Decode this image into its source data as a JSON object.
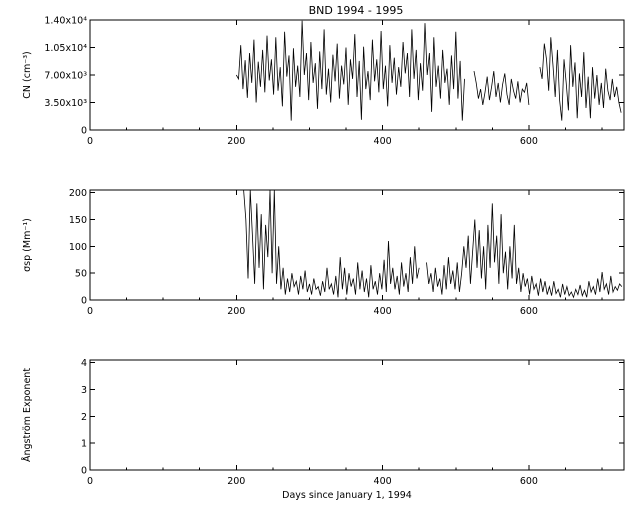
{
  "title": "BND 1994 - 1995",
  "chart_data": [
    {
      "type": "line",
      "ylabel": "CN (cm⁻³)",
      "xlim": [
        0,
        730
      ],
      "ylim": [
        0,
        14000
      ],
      "xticks": [
        0,
        200,
        400,
        600
      ],
      "xtick_labels": [
        "0",
        "200",
        "400",
        "600"
      ],
      "yticks": [
        0,
        3500,
        7000,
        10500,
        14000
      ],
      "ytick_labels": [
        "0",
        "3.50x10³",
        "7.00x10³",
        "1.05x10⁴",
        "1.40x10⁴"
      ],
      "segments": [
        {
          "x": [
            200,
            203,
            206,
            209,
            212,
            215,
            218,
            221,
            224,
            227,
            230,
            233,
            236,
            239,
            242,
            245,
            248,
            251,
            254,
            257,
            260,
            263,
            266,
            269,
            272,
            275,
            278,
            281,
            284,
            287,
            290,
            293,
            296,
            299,
            302,
            305,
            308,
            311,
            314,
            317,
            320,
            323,
            326,
            329,
            332,
            335,
            338,
            341,
            344,
            347,
            350,
            353,
            356,
            359,
            362,
            365,
            368,
            371,
            374,
            377,
            380,
            383,
            386,
            389,
            392,
            395,
            398,
            401,
            404,
            407,
            410,
            413,
            416,
            419,
            422,
            425,
            428,
            431,
            434,
            437,
            440,
            443,
            446,
            449,
            452,
            455,
            458,
            461,
            464,
            467,
            470,
            473,
            476,
            479,
            482,
            485,
            488,
            491,
            494,
            497,
            500,
            503,
            506,
            509,
            512
          ],
          "y": [
            7000,
            6500,
            10800,
            5200,
            8900,
            4100,
            9800,
            6000,
            11500,
            3500,
            8700,
            5500,
            10200,
            4800,
            12000,
            6300,
            9000,
            4500,
            11800,
            5000,
            8000,
            3000,
            12500,
            6800,
            9500,
            1200,
            10400,
            5500,
            8200,
            4200,
            13900,
            7000,
            9800,
            3800,
            11200,
            6000,
            8500,
            2700,
            10000,
            5200,
            12800,
            4500,
            7800,
            3500,
            9600,
            6200,
            11000,
            4000,
            8200,
            5800,
            10500,
            3200,
            9000,
            6500,
            12200,
            4200,
            8800,
            1300,
            10600,
            5200,
            7500,
            3800,
            11500,
            6200,
            9000,
            4800,
            12600,
            5200,
            8200,
            3000,
            10800,
            6000,
            9200,
            4500,
            8000,
            5500,
            11200,
            7200,
            9800,
            4200,
            12800,
            6500,
            10200,
            3800,
            8500,
            5000,
            13600,
            7000,
            9800,
            2300,
            11800,
            5500,
            8200,
            4000,
            10200,
            6000,
            7800,
            3200,
            9500,
            5200,
            12500,
            4000,
            8800,
            1200,
            6500
          ]
        },
        {
          "x": [
            525,
            528,
            531,
            534,
            537,
            540,
            543,
            546,
            549,
            552,
            555,
            558,
            561,
            564,
            567,
            570,
            573,
            576,
            579,
            582,
            585,
            588,
            591,
            594,
            597,
            600
          ],
          "y": [
            7500,
            6000,
            4000,
            5200,
            3200,
            4800,
            6800,
            3800,
            5500,
            7500,
            4200,
            6000,
            3500,
            5800,
            7200,
            4500,
            3200,
            6500,
            5000,
            4000,
            6200,
            3500,
            5200,
            4800,
            6000,
            3200
          ]
        },
        {
          "x": [
            615,
            618,
            621,
            624,
            627,
            630,
            633,
            636,
            639,
            642,
            645,
            648,
            651,
            654,
            657,
            660,
            663,
            666,
            669,
            672,
            675,
            678,
            681,
            684,
            687,
            690,
            693,
            696,
            699,
            702,
            705,
            708,
            711,
            714,
            717,
            720,
            723,
            726
          ],
          "y": [
            8000,
            6500,
            11000,
            9000,
            5000,
            11800,
            8200,
            4200,
            10200,
            3800,
            1200,
            9000,
            6000,
            2500,
            10800,
            5500,
            8600,
            1500,
            7200,
            4200,
            9900,
            2800,
            6800,
            1500,
            8000,
            4000,
            7000,
            3200,
            6000,
            2800,
            7800,
            5000,
            3800,
            6500,
            4200,
            5500,
            3500,
            2200
          ]
        }
      ]
    },
    {
      "type": "line",
      "ylabel": "σsp (Mm⁻¹)",
      "xlim": [
        0,
        730
      ],
      "ylim": [
        0,
        205
      ],
      "xticks": [
        0,
        200,
        400,
        600
      ],
      "xtick_labels": [
        "0",
        "200",
        "400",
        "600"
      ],
      "yticks": [
        0,
        50,
        100,
        150,
        200
      ],
      "ytick_labels": [
        "0",
        "50",
        "100",
        "150",
        "200"
      ],
      "segments": [
        {
          "x": [
            210,
            213,
            216,
            219,
            222,
            225,
            228,
            231,
            234,
            237,
            240,
            243,
            246,
            249,
            252,
            255,
            258,
            261,
            264,
            267,
            270,
            273,
            276,
            279,
            282,
            285,
            288,
            291,
            294,
            297,
            300,
            303,
            306,
            309,
            312,
            315,
            318,
            321,
            324,
            327,
            330,
            333,
            336,
            339,
            342,
            345,
            348,
            351,
            354,
            357,
            360,
            363,
            366,
            369,
            372,
            375,
            378,
            381,
            384,
            387,
            390,
            393,
            396,
            399,
            402,
            405,
            408,
            411,
            414,
            417,
            420,
            423,
            426,
            429,
            432,
            435,
            438,
            441,
            444,
            447,
            450
          ],
          "y": [
            205,
            150,
            40,
            205,
            120,
            30,
            180,
            60,
            160,
            20,
            140,
            80,
            205,
            50,
            205,
            30,
            100,
            20,
            60,
            10,
            40,
            15,
            50,
            25,
            35,
            10,
            45,
            20,
            55,
            15,
            30,
            10,
            40,
            20,
            25,
            8,
            35,
            15,
            60,
            20,
            30,
            10,
            45,
            5,
            80,
            20,
            60,
            10,
            50,
            25,
            40,
            10,
            70,
            20,
            55,
            15,
            40,
            5,
            65,
            20,
            35,
            10,
            50,
            20,
            75,
            15,
            110,
            30,
            60,
            20,
            45,
            10,
            70,
            25,
            50,
            15,
            80,
            30,
            100,
            40,
            60
          ]
        },
        {
          "x": [
            460,
            463,
            466,
            469,
            472,
            475,
            478,
            481,
            484,
            487,
            490,
            493,
            496,
            499,
            502,
            505,
            508,
            511,
            514,
            517,
            520,
            523,
            526,
            529,
            532,
            535,
            538,
            541,
            544,
            547,
            550,
            553,
            556,
            559,
            562,
            565,
            568,
            571,
            574,
            577,
            580,
            583,
            586,
            589,
            592,
            595,
            598,
            601,
            604,
            607,
            610,
            613,
            616,
            619,
            622,
            625,
            628,
            631,
            634,
            637,
            640,
            643,
            646,
            649,
            652,
            655,
            658,
            661,
            664,
            667,
            670,
            673,
            676,
            679,
            682,
            685,
            688,
            691,
            694,
            697,
            700,
            703,
            706,
            709,
            712,
            715,
            718,
            721,
            724,
            727
          ],
          "y": [
            70,
            30,
            50,
            15,
            60,
            25,
            40,
            10,
            65,
            20,
            80,
            30,
            55,
            20,
            70,
            15,
            50,
            100,
            60,
            120,
            30,
            90,
            150,
            60,
            130,
            40,
            100,
            20,
            140,
            60,
            180,
            70,
            120,
            30,
            160,
            50,
            90,
            20,
            100,
            40,
            140,
            30,
            60,
            15,
            50,
            25,
            40,
            10,
            45,
            20,
            30,
            8,
            40,
            15,
            35,
            10,
            25,
            8,
            35,
            12,
            20,
            5,
            30,
            10,
            25,
            8,
            15,
            5,
            20,
            10,
            28,
            8,
            18,
            5,
            35,
            15,
            25,
            10,
            40,
            15,
            52,
            20,
            30,
            10,
            45,
            15,
            25,
            18,
            30,
            25
          ]
        }
      ]
    },
    {
      "type": "line",
      "xlabel": "Days since January 1, 1994",
      "ylabel": "Ångström Exponent",
      "xlim": [
        0,
        730
      ],
      "ylim": [
        0,
        4.1
      ],
      "xticks": [
        0,
        200,
        400,
        600
      ],
      "xtick_labels": [
        "0",
        "200",
        "400",
        "600"
      ],
      "yticks": [
        0,
        1,
        2,
        3,
        4
      ],
      "ytick_labels": [
        "0",
        "1",
        "2",
        "3",
        "4"
      ],
      "segments": []
    }
  ]
}
